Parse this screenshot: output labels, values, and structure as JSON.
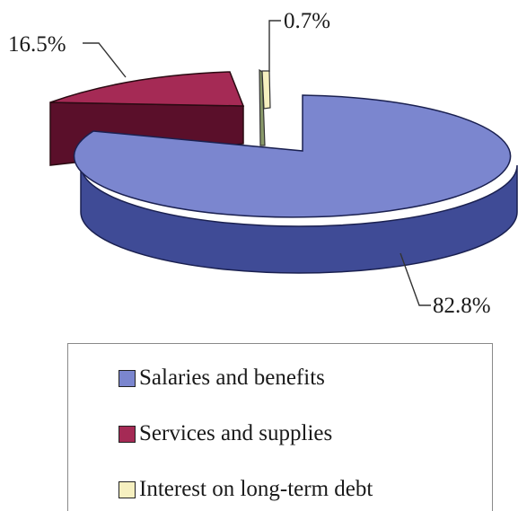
{
  "chart_data": {
    "type": "pie",
    "title": "",
    "slices": [
      {
        "label": "Salaries and benefits",
        "value": 82.8,
        "display": "82.8%",
        "color": "#7b86cf",
        "side_color": "#3f4b96"
      },
      {
        "label": "Services and supplies",
        "value": 16.5,
        "display": "16.5%",
        "color": "#a52a55",
        "side_color": "#5a0f2a"
      },
      {
        "label": "Interest on long-term debt",
        "value": 0.7,
        "display": "0.7%",
        "color": "#f6f0c0",
        "side_color": "#8a9a6a"
      }
    ],
    "legend_position": "bottom",
    "style": "3d-exploded"
  }
}
